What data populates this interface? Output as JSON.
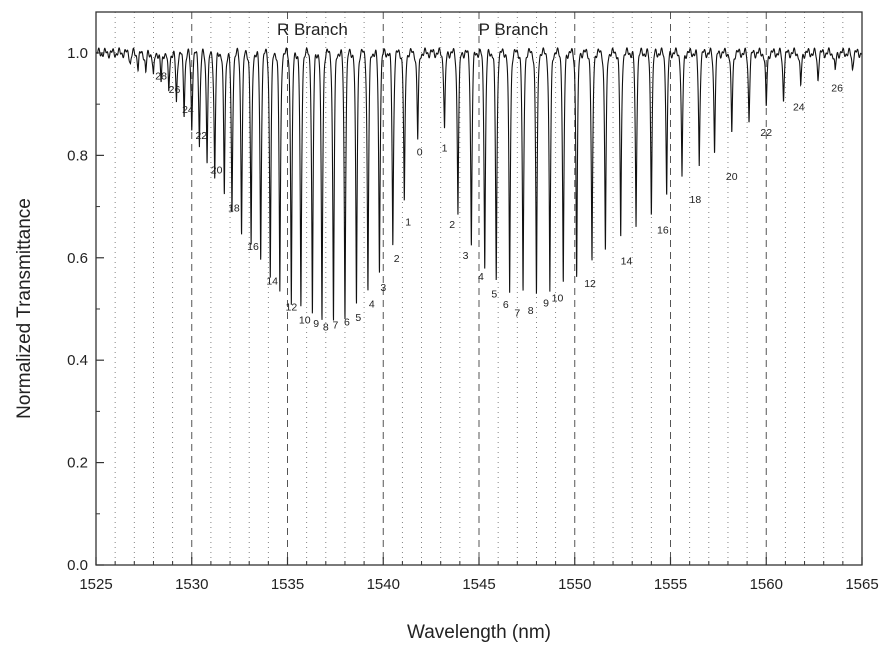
{
  "chart_data": {
    "type": "line",
    "title": "",
    "xlabel": "Wavelength (nm)",
    "ylabel": "Normalized Transmittance",
    "xlim": [
      1525,
      1565
    ],
    "ylim": [
      0.0,
      1.08
    ],
    "x_ticks": [
      1525,
      1530,
      1535,
      1540,
      1545,
      1550,
      1555,
      1560,
      1565
    ],
    "x_tick_labels": [
      "1525",
      "1530",
      "1535",
      "1540",
      "1545",
      "1550",
      "1555",
      "1560",
      "1565"
    ],
    "y_ticks": [
      0.0,
      0.2,
      0.4,
      0.6,
      0.8,
      1.0
    ],
    "y_tick_labels": [
      "0.0",
      "0.2",
      "0.4",
      "0.6",
      "0.8",
      "1.0"
    ],
    "grid": {
      "major_x": "dashed",
      "minor_x": "dotted",
      "minor_x_step": 1
    },
    "baseline": 1.0,
    "branch_labels": [
      {
        "text": "R Branch",
        "x": 1536.3,
        "y": 1.035
      },
      {
        "text": "P Branch",
        "x": 1546.8,
        "y": 1.035
      }
    ],
    "lines": [
      {
        "branch": "R",
        "j": 0,
        "x": 1541.8,
        "min": 0.83
      },
      {
        "branch": "R",
        "j": 1,
        "x": 1541.1,
        "min": 0.7
      },
      {
        "branch": "R",
        "j": 2,
        "x": 1540.5,
        "min": 0.62
      },
      {
        "branch": "R",
        "j": 3,
        "x": 1539.8,
        "min": 0.57
      },
      {
        "branch": "R",
        "j": 4,
        "x": 1539.2,
        "min": 0.53
      },
      {
        "branch": "R",
        "j": 5,
        "x": 1538.6,
        "min": 0.5
      },
      {
        "branch": "R",
        "j": 6,
        "x": 1538.0,
        "min": 0.48
      },
      {
        "branch": "R",
        "j": 7,
        "x": 1537.4,
        "min": 0.47
      },
      {
        "branch": "R",
        "j": 8,
        "x": 1536.8,
        "min": 0.47
      },
      {
        "branch": "R",
        "j": 9,
        "x": 1536.3,
        "min": 0.48
      },
      {
        "branch": "R",
        "j": 10,
        "x": 1535.7,
        "min": 0.49
      },
      {
        "branch": "R",
        "j": 11,
        "x": 1535.2,
        "min": 0.51
      },
      {
        "branch": "R",
        "j": 12,
        "x": 1534.6,
        "min": 0.53
      },
      {
        "branch": "R",
        "j": 13,
        "x": 1534.1,
        "min": 0.56
      },
      {
        "branch": "R",
        "j": 14,
        "x": 1533.6,
        "min": 0.59
      },
      {
        "branch": "R",
        "j": 15,
        "x": 1533.1,
        "min": 0.62
      },
      {
        "branch": "R",
        "j": 16,
        "x": 1532.6,
        "min": 0.65
      },
      {
        "branch": "R",
        "j": 17,
        "x": 1532.1,
        "min": 0.68
      },
      {
        "branch": "R",
        "j": 18,
        "x": 1531.7,
        "min": 0.72
      },
      {
        "branch": "R",
        "j": 19,
        "x": 1531.2,
        "min": 0.75
      },
      {
        "branch": "R",
        "j": 20,
        "x": 1530.8,
        "min": 0.79
      },
      {
        "branch": "R",
        "j": 21,
        "x": 1530.4,
        "min": 0.82
      },
      {
        "branch": "R",
        "j": 22,
        "x": 1530.0,
        "min": 0.85
      },
      {
        "branch": "R",
        "j": 23,
        "x": 1529.6,
        "min": 0.88
      },
      {
        "branch": "R",
        "j": 24,
        "x": 1529.2,
        "min": 0.9
      },
      {
        "branch": "R",
        "j": 25,
        "x": 1528.8,
        "min": 0.92
      },
      {
        "branch": "R",
        "j": 26,
        "x": 1528.4,
        "min": 0.94
      },
      {
        "branch": "R",
        "j": 27,
        "x": 1528.0,
        "min": 0.95
      },
      {
        "branch": "R",
        "j": 28,
        "x": 1527.6,
        "min": 0.96
      },
      {
        "branch": "R",
        "j": 29,
        "x": 1527.2,
        "min": 0.97
      },
      {
        "branch": "R",
        "j": 30,
        "x": 1526.8,
        "min": 0.98
      },
      {
        "branch": "P",
        "j": 1,
        "x": 1543.2,
        "min": 0.85
      },
      {
        "branch": "P",
        "j": 2,
        "x": 1543.9,
        "min": 0.69
      },
      {
        "branch": "P",
        "j": 3,
        "x": 1544.6,
        "min": 0.62
      },
      {
        "branch": "P",
        "j": 4,
        "x": 1545.3,
        "min": 0.58
      },
      {
        "branch": "P",
        "j": 5,
        "x": 1545.9,
        "min": 0.55
      },
      {
        "branch": "P",
        "j": 6,
        "x": 1546.6,
        "min": 0.53
      },
      {
        "branch": "P",
        "j": 7,
        "x": 1547.3,
        "min": 0.52
      },
      {
        "branch": "P",
        "j": 8,
        "x": 1548.0,
        "min": 0.52
      },
      {
        "branch": "P",
        "j": 9,
        "x": 1548.7,
        "min": 0.53
      },
      {
        "branch": "P",
        "j": 10,
        "x": 1549.4,
        "min": 0.54
      },
      {
        "branch": "P",
        "j": 11,
        "x": 1550.1,
        "min": 0.56
      },
      {
        "branch": "P",
        "j": 12,
        "x": 1550.9,
        "min": 0.58
      },
      {
        "branch": "P",
        "j": 13,
        "x": 1551.6,
        "min": 0.61
      },
      {
        "branch": "P",
        "j": 14,
        "x": 1552.4,
        "min": 0.63
      },
      {
        "branch": "P",
        "j": 15,
        "x": 1553.2,
        "min": 0.66
      },
      {
        "branch": "P",
        "j": 16,
        "x": 1554.0,
        "min": 0.69
      },
      {
        "branch": "P",
        "j": 17,
        "x": 1554.8,
        "min": 0.72
      },
      {
        "branch": "P",
        "j": 18,
        "x": 1555.6,
        "min": 0.75
      },
      {
        "branch": "P",
        "j": 19,
        "x": 1556.5,
        "min": 0.78
      },
      {
        "branch": "P",
        "j": 20,
        "x": 1557.3,
        "min": 0.81
      },
      {
        "branch": "P",
        "j": 21,
        "x": 1558.2,
        "min": 0.84
      },
      {
        "branch": "P",
        "j": 22,
        "x": 1559.1,
        "min": 0.87
      },
      {
        "branch": "P",
        "j": 23,
        "x": 1560.0,
        "min": 0.89
      },
      {
        "branch": "P",
        "j": 24,
        "x": 1560.9,
        "min": 0.91
      },
      {
        "branch": "P",
        "j": 25,
        "x": 1561.8,
        "min": 0.93
      },
      {
        "branch": "P",
        "j": 26,
        "x": 1562.7,
        "min": 0.95
      },
      {
        "branch": "P",
        "j": 27,
        "x": 1563.6,
        "min": 0.96
      },
      {
        "branch": "P",
        "j": 28,
        "x": 1564.5,
        "min": 0.97
      }
    ],
    "annotations": [
      {
        "text": "28",
        "x": 1528.4,
        "y": 0.948
      },
      {
        "text": "26",
        "x": 1529.1,
        "y": 0.922
      },
      {
        "text": "24",
        "x": 1529.8,
        "y": 0.883
      },
      {
        "text": "22",
        "x": 1530.5,
        "y": 0.832
      },
      {
        "text": "20",
        "x": 1531.3,
        "y": 0.765
      },
      {
        "text": "18",
        "x": 1532.2,
        "y": 0.69
      },
      {
        "text": "16",
        "x": 1533.2,
        "y": 0.615
      },
      {
        "text": "14",
        "x": 1534.2,
        "y": 0.548
      },
      {
        "text": "12",
        "x": 1535.2,
        "y": 0.497
      },
      {
        "text": "10",
        "x": 1535.9,
        "y": 0.472
      },
      {
        "text": "9",
        "x": 1536.5,
        "y": 0.465
      },
      {
        "text": "8",
        "x": 1537.0,
        "y": 0.458
      },
      {
        "text": "7",
        "x": 1537.5,
        "y": 0.462
      },
      {
        "text": "6",
        "x": 1538.1,
        "y": 0.468
      },
      {
        "text": "5",
        "x": 1538.7,
        "y": 0.477
      },
      {
        "text": "4",
        "x": 1539.4,
        "y": 0.503
      },
      {
        "text": "3",
        "x": 1540.0,
        "y": 0.535
      },
      {
        "text": "2",
        "x": 1540.7,
        "y": 0.592
      },
      {
        "text": "1",
        "x": 1541.3,
        "y": 0.663
      },
      {
        "text": "0",
        "x": 1541.9,
        "y": 0.8
      },
      {
        "text": "1",
        "x": 1543.2,
        "y": 0.808
      },
      {
        "text": "2",
        "x": 1543.6,
        "y": 0.658
      },
      {
        "text": "3",
        "x": 1544.3,
        "y": 0.598
      },
      {
        "text": "4",
        "x": 1545.1,
        "y": 0.557
      },
      {
        "text": "5",
        "x": 1545.8,
        "y": 0.522
      },
      {
        "text": "6",
        "x": 1546.4,
        "y": 0.502
      },
      {
        "text": "7",
        "x": 1547.0,
        "y": 0.485
      },
      {
        "text": "8",
        "x": 1547.7,
        "y": 0.49
      },
      {
        "text": "9",
        "x": 1548.5,
        "y": 0.505
      },
      {
        "text": "10",
        "x": 1549.1,
        "y": 0.515
      },
      {
        "text": "12",
        "x": 1550.8,
        "y": 0.543
      },
      {
        "text": "14",
        "x": 1552.7,
        "y": 0.587
      },
      {
        "text": "16",
        "x": 1554.6,
        "y": 0.647
      },
      {
        "text": "18",
        "x": 1556.3,
        "y": 0.707
      },
      {
        "text": "20",
        "x": 1558.2,
        "y": 0.752
      },
      {
        "text": "22",
        "x": 1560.0,
        "y": 0.838
      },
      {
        "text": "24",
        "x": 1561.7,
        "y": 0.888
      },
      {
        "text": "26",
        "x": 1563.7,
        "y": 0.925
      }
    ]
  }
}
